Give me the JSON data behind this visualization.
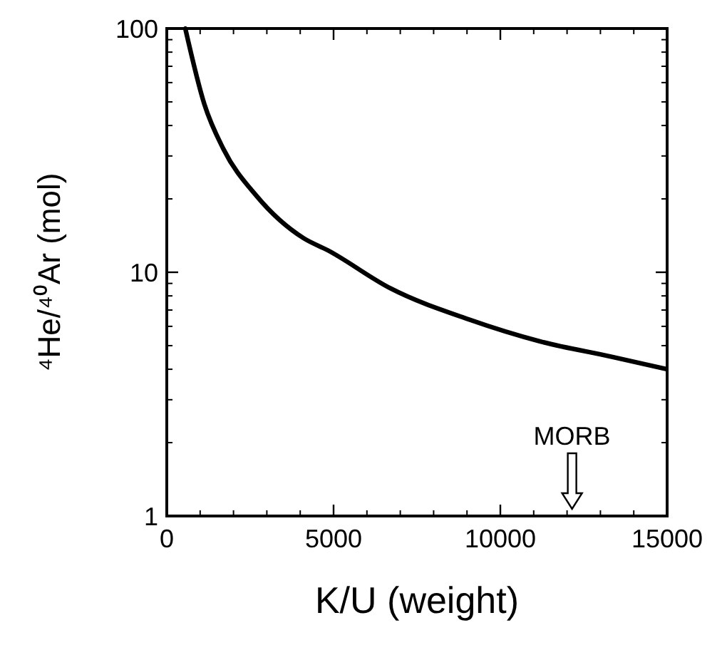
{
  "chart_data": {
    "type": "line",
    "xlabel": "K/U (weight)",
    "ylabel": "⁴He/⁴⁰Ar (mol)",
    "x": [
      555,
      1125,
      1700,
      2700,
      4100,
      4830,
      6700,
      9060,
      11200,
      13340,
      15000
    ],
    "series": [
      {
        "color": "#000000",
        "values": [
          100,
          49,
          32,
          20.5,
          13.8,
          12.3,
          8.6,
          6.4,
          5.2,
          4.5,
          4.0
        ]
      }
    ],
    "xlim": [
      0,
      15000
    ],
    "xticks": [
      0,
      5000,
      10000,
      15000
    ],
    "ylim": [
      1,
      100
    ],
    "yticks": [
      1,
      10,
      100
    ],
    "log": "y",
    "grid": false,
    "marker": "none",
    "line_style": "solid",
    "annotations": [
      "MORB"
    ]
  }
}
